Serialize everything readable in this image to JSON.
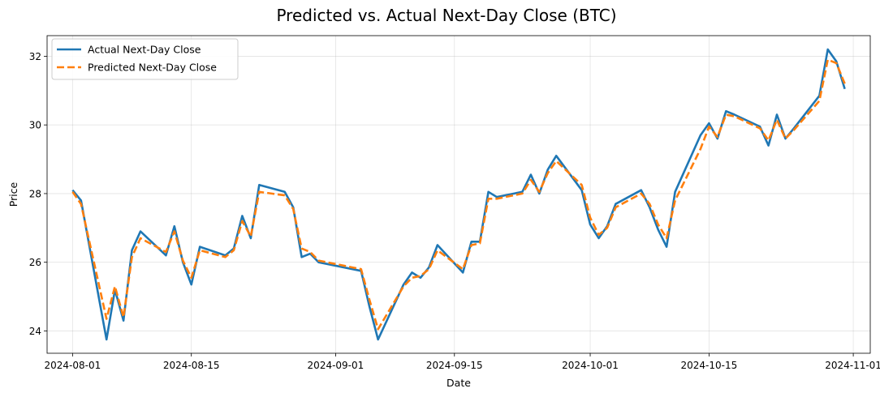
{
  "chart_data": {
    "type": "line",
    "title": "Predicted vs. Actual Next-Day Close (BTC)",
    "xlabel": "Date",
    "ylabel": "Price",
    "xlim": [
      "2024-07-29",
      "2024-11-03"
    ],
    "ylim": [
      23.35,
      32.6
    ],
    "x_ticks": [
      "2024-08-01",
      "2024-08-15",
      "2024-09-01",
      "2024-09-15",
      "2024-10-01",
      "2024-10-15",
      "2024-11-01"
    ],
    "y_ticks": [
      24,
      26,
      28,
      30,
      32
    ],
    "grid": true,
    "legend_position": "top-left",
    "x": [
      "2024-08-01",
      "2024-08-02",
      "2024-08-05",
      "2024-08-06",
      "2024-08-07",
      "2024-08-08",
      "2024-08-09",
      "2024-08-12",
      "2024-08-13",
      "2024-08-14",
      "2024-08-15",
      "2024-08-16",
      "2024-08-19",
      "2024-08-20",
      "2024-08-21",
      "2024-08-22",
      "2024-08-23",
      "2024-08-26",
      "2024-08-27",
      "2024-08-28",
      "2024-08-29",
      "2024-08-30",
      "2024-09-03",
      "2024-09-04",
      "2024-09-05",
      "2024-09-06",
      "2024-09-09",
      "2024-09-10",
      "2024-09-11",
      "2024-09-12",
      "2024-09-13",
      "2024-09-16",
      "2024-09-17",
      "2024-09-18",
      "2024-09-19",
      "2024-09-20",
      "2024-09-23",
      "2024-09-24",
      "2024-09-25",
      "2024-09-26",
      "2024-09-27",
      "2024-09-30",
      "2024-10-01",
      "2024-10-02",
      "2024-10-03",
      "2024-10-04",
      "2024-10-07",
      "2024-10-08",
      "2024-10-09",
      "2024-10-10",
      "2024-10-11",
      "2024-10-14",
      "2024-10-15",
      "2024-10-16",
      "2024-10-17",
      "2024-10-18",
      "2024-10-21",
      "2024-10-22",
      "2024-10-23",
      "2024-10-24",
      "2024-10-25",
      "2024-10-28",
      "2024-10-29",
      "2024-10-30",
      "2024-10-31"
    ],
    "series": [
      {
        "name": "Actual Next-Day Close",
        "color": "#1f77b4",
        "style": "solid",
        "values": [
          28.1,
          27.8,
          23.75,
          25.2,
          24.3,
          26.35,
          26.9,
          26.2,
          27.05,
          26.0,
          25.35,
          26.45,
          26.2,
          26.4,
          27.35,
          26.7,
          28.25,
          28.05,
          27.6,
          26.15,
          26.25,
          26.0,
          25.8,
          25.75,
          24.7,
          23.75,
          25.35,
          25.7,
          25.55,
          25.85,
          26.5,
          25.7,
          26.6,
          26.6,
          28.05,
          27.9,
          28.05,
          28.55,
          28.0,
          28.7,
          29.1,
          28.1,
          27.1,
          26.7,
          27.05,
          27.7,
          28.1,
          27.6,
          26.95,
          26.45,
          28.05,
          29.7,
          30.05,
          29.6,
          30.4,
          30.3,
          29.95,
          29.4,
          30.3,
          29.6,
          29.9,
          30.85,
          32.2,
          31.85,
          31.05
        ]
      },
      {
        "name": "Predicted Next-Day Close",
        "color": "#ff7f0e",
        "style": "dashed",
        "values": [
          28.05,
          27.7,
          24.35,
          25.3,
          24.4,
          26.15,
          26.7,
          26.3,
          26.9,
          26.05,
          25.55,
          26.35,
          26.15,
          26.35,
          27.2,
          26.75,
          28.05,
          27.95,
          27.55,
          26.4,
          26.3,
          26.05,
          25.85,
          25.8,
          24.9,
          24.05,
          25.3,
          25.55,
          25.6,
          25.8,
          26.35,
          25.8,
          26.5,
          26.55,
          27.85,
          27.85,
          28.0,
          28.4,
          28.05,
          28.6,
          28.95,
          28.25,
          27.3,
          26.8,
          27.0,
          27.6,
          28.0,
          27.7,
          27.1,
          26.7,
          27.8,
          29.3,
          29.95,
          29.65,
          30.3,
          30.25,
          29.9,
          29.55,
          30.15,
          29.6,
          29.85,
          30.7,
          31.9,
          31.8,
          31.2
        ]
      }
    ]
  }
}
